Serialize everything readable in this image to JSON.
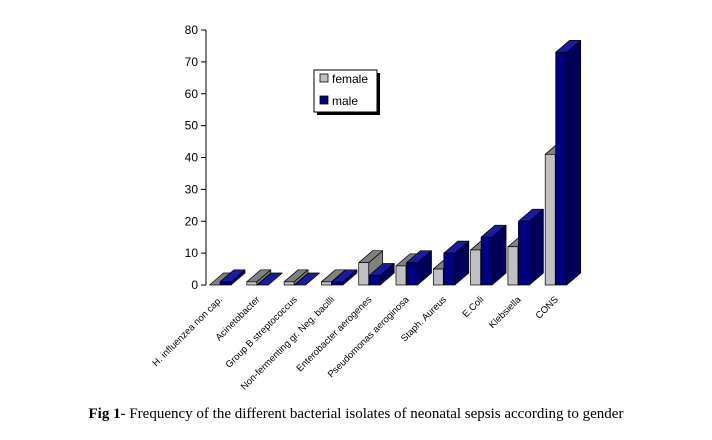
{
  "chart_data": {
    "type": "bar",
    "categories": [
      "H. influenzea non cap.",
      "Acinetobacter",
      "Group B streptococcus",
      "Non-fermenting gr. Neg. bacilli",
      "Enterobacter aerogenes",
      "Pseudomonas aeroginosa",
      "Staph. Aureus",
      "E.Coli",
      "Klebsiella",
      "CONS"
    ],
    "series": [
      {
        "name": "female",
        "values": [
          0,
          1,
          1,
          1,
          7,
          6,
          5,
          11,
          12,
          41
        ]
      },
      {
        "name": "male",
        "values": [
          1,
          0,
          0,
          1,
          3,
          7,
          10,
          15,
          20,
          73
        ]
      }
    ],
    "ylim": [
      0,
      80
    ],
    "yticks": [
      "0",
      "10",
      "20",
      "30",
      "40",
      "50",
      "60",
      "70",
      "80"
    ],
    "legend_position": "top-center",
    "grid": false,
    "colors": {
      "female": "#c0c0c0",
      "female_side": "#808080",
      "male": "#000080",
      "male_side": "#00005a",
      "male_top": "#1a1aa6"
    }
  },
  "caption": {
    "label": "Fig 1-",
    "text": " Frequency of the different bacterial isolates of neonatal sepsis according to gender"
  }
}
